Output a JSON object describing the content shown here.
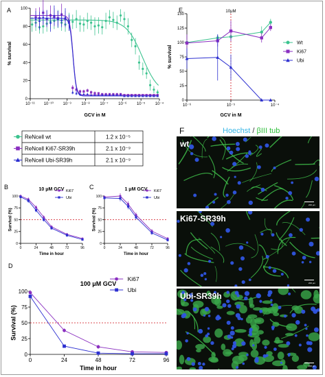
{
  "panel_labels": {
    "a": "A",
    "e": "E",
    "f": "F",
    "b": "B",
    "c": "C",
    "d": "D"
  },
  "colors": {
    "wt": "#3cc38f",
    "ki67": "#8a2fc0",
    "ubi": "#2c2fd0",
    "ref": "#d0101a"
  },
  "table": [
    {
      "label": "ReNcell wt",
      "value": "1.2 x 10⁻⁵",
      "marker": "circle",
      "color": "#3cc38f"
    },
    {
      "label": "ReNcell Ki67-SR39h",
      "value": "2.1 x 10⁻⁹",
      "marker": "square",
      "color": "#8a2fc0"
    },
    {
      "label": "ReNcell Ubi-SR39h",
      "value": "2.1 x 10⁻⁹",
      "marker": "triangle",
      "color": "#2c2fd0"
    }
  ],
  "microscopy": {
    "header": {
      "hoechst": "Hoechst",
      "sep": " / ",
      "tub": "βIII tub"
    },
    "panels": [
      {
        "label": "wt"
      },
      {
        "label": "Ki67-SR39h"
      },
      {
        "label": "Ubi-SR39h"
      }
    ],
    "scale_text": "200 μm"
  },
  "chart_data": [
    {
      "id": "A",
      "type": "scatter",
      "xscale": "log",
      "xlabel": "GCV in M",
      "ylabel": "% survival",
      "xlim": [
        1e-11,
        0.0001
      ],
      "ylim": [
        0,
        100
      ],
      "xticks": [
        "10⁻¹¹",
        "10⁻¹⁰",
        "10⁻⁹",
        "10⁻⁸",
        "10⁻⁷",
        "10⁻⁶",
        "10⁻⁵",
        "10⁻⁴"
      ],
      "yticks": [
        0,
        20,
        40,
        60,
        80,
        100
      ],
      "series": [
        {
          "key": "wt",
          "marker": "circle",
          "color": "#3cc38f",
          "x": [
            -10.9,
            -10.7,
            -10.5,
            -10.3,
            -10.1,
            -9.9,
            -9.7,
            -9.5,
            -9.3,
            -9.1,
            -8.9,
            -8.7,
            -8.5,
            -8.3,
            -8.1,
            -7.9,
            -7.7,
            -7.5,
            -7.3,
            -7.1,
            -6.9,
            -6.7,
            -6.5,
            -6.3,
            -6.1,
            -5.9,
            -5.7,
            -5.5,
            -5.3,
            -5.1,
            -4.9,
            -4.7,
            -4.5,
            -4.3,
            -4.1
          ],
          "y": [
            82,
            84,
            79,
            80,
            83,
            85,
            86,
            88,
            84,
            82,
            86,
            85,
            88,
            83,
            82,
            86,
            84,
            80,
            81,
            79,
            86,
            90,
            87,
            84,
            92,
            88,
            80,
            65,
            58,
            40,
            33,
            28,
            15,
            10,
            7
          ],
          "err": [
            8,
            9,
            7,
            8,
            9,
            8,
            9,
            10,
            9,
            8,
            9,
            8,
            10,
            9,
            8,
            9,
            8,
            10,
            9,
            8,
            9,
            8,
            9,
            8,
            7,
            8,
            9,
            8,
            9,
            8,
            7,
            6,
            6,
            4,
            3
          ],
          "fit": {
            "top": 87,
            "bottom": 5,
            "logec50": -4.92,
            "hill": 1.0
          }
        },
        {
          "key": "ki67",
          "marker": "square",
          "color": "#8a2fc0",
          "x": [
            -10.7,
            -10.5,
            -10.3,
            -10.1,
            -9.9,
            -9.7,
            -9.5,
            -9.3,
            -9.1,
            -8.9,
            -8.7,
            -8.5,
            -8.3,
            -8.1,
            -7.9,
            -7.7,
            -7.5,
            -7.3,
            -7.1,
            -6.9,
            -6.7,
            -6.5,
            -6.3,
            -6.1,
            -5.9,
            -5.7,
            -5.5,
            -5.3,
            -5.1,
            -4.9,
            -4.7,
            -4.5,
            -4.3,
            -4.1
          ],
          "y": [
            90,
            89,
            95,
            88,
            92,
            90,
            89,
            93,
            88,
            85,
            12,
            10,
            8,
            8,
            9,
            7,
            6,
            6,
            5,
            5,
            5,
            5,
            5,
            5,
            4,
            4,
            4,
            4,
            4,
            4,
            4,
            4,
            4,
            4
          ],
          "err": [
            10,
            12,
            14,
            9,
            11,
            10,
            8,
            12,
            9,
            7,
            3,
            3,
            2,
            2,
            2,
            2,
            2,
            1,
            1,
            1,
            1,
            1,
            1,
            1,
            1,
            1,
            1,
            1,
            1,
            1,
            1,
            1,
            1,
            1
          ],
          "fit": {
            "top": 92,
            "bottom": 4,
            "logec50": -8.68,
            "hill": 5.0
          }
        },
        {
          "key": "ubi",
          "marker": "triangle",
          "color": "#2c2fd0",
          "x": [
            -10.7,
            -10.5,
            -10.3,
            -10.1,
            -9.9,
            -9.7,
            -9.5,
            -9.3,
            -9.1,
            -8.9,
            -8.7,
            -8.5,
            -8.3,
            -8.1,
            -7.9,
            -7.7,
            -7.5,
            -7.3,
            -7.1,
            -6.9,
            -6.7,
            -6.5,
            -6.3,
            -6.1,
            -5.9,
            -5.7,
            -5.5,
            -5.3,
            -5.1,
            -4.9,
            -4.7,
            -4.5,
            -4.3,
            -4.1
          ],
          "y": [
            88,
            86,
            90,
            89,
            84,
            92,
            88,
            87,
            90,
            84,
            7,
            6,
            5,
            5,
            5,
            4,
            4,
            4,
            4,
            4,
            4,
            4,
            4,
            4,
            3,
            3,
            3,
            3,
            3,
            3,
            3,
            3,
            3,
            3
          ],
          "err": [
            9,
            10,
            8,
            9,
            10,
            11,
            9,
            8,
            10,
            9,
            2,
            2,
            2,
            1,
            1,
            1,
            1,
            1,
            1,
            1,
            1,
            1,
            1,
            1,
            1,
            1,
            1,
            1,
            1,
            1,
            1,
            1,
            1,
            1
          ],
          "fit": {
            "top": 89,
            "bottom": 3,
            "logec50": -8.68,
            "hill": 5.0
          }
        }
      ]
    },
    {
      "id": "E",
      "type": "line",
      "xscale": "log",
      "xlabel": "GCV in M",
      "ylabel": "% survival",
      "xlim": [
        1e-06,
        0.0001
      ],
      "ylim": [
        0,
        150
      ],
      "xticks": [
        "10⁻⁶",
        "10⁻⁵",
        "10⁻⁴"
      ],
      "yticks": [
        0,
        25,
        50,
        75,
        100,
        125,
        150
      ],
      "annotation": {
        "text": "10μM",
        "x": 1e-05
      },
      "legend_position": "right",
      "series": [
        {
          "name": "Wt",
          "marker": "circle",
          "color": "#3cc38f",
          "x": [
            1e-06,
            5e-06,
            1e-05,
            5e-05,
            8e-05
          ],
          "y": [
            100,
            108,
            110,
            118,
            135
          ],
          "err": [
            5,
            6,
            7,
            10,
            6
          ]
        },
        {
          "name": "Ki67",
          "marker": "square",
          "color": "#8a2fc0",
          "x": [
            1e-06,
            5e-06,
            1e-05,
            5e-05,
            8e-05
          ],
          "y": [
            99,
            103,
            120,
            108,
            126
          ],
          "err": [
            15,
            10,
            18,
            8,
            6
          ]
        },
        {
          "name": "Ubi",
          "marker": "triangle",
          "color": "#2c2fd0",
          "x": [
            1e-06,
            5e-06,
            1e-05,
            5e-05,
            8e-05
          ],
          "y": [
            72,
            74,
            57,
            0,
            0
          ],
          "err": [
            18,
            40,
            22,
            0,
            0
          ]
        }
      ]
    },
    {
      "id": "B",
      "type": "line",
      "title": "10 μM GCV",
      "xlabel": "Time in hour",
      "ylabel": "Survival (%)",
      "xlim": [
        0,
        96
      ],
      "ylim": [
        0,
        100
      ],
      "xticks": [
        0,
        24,
        48,
        72,
        96
      ],
      "yticks": [
        0,
        25,
        50,
        75,
        100
      ],
      "refline": 50,
      "legend_position": "top-right",
      "series": [
        {
          "name": "Ki67",
          "marker": "circle",
          "color": "#8a2fc0",
          "x": [
            0,
            12,
            24,
            36,
            48,
            72,
            96
          ],
          "y": [
            100,
            93,
            76,
            55,
            35,
            19,
            10
          ],
          "err": [
            3,
            4,
            4,
            4,
            3,
            3,
            2
          ]
        },
        {
          "name": "Ubi",
          "marker": "square",
          "color": "#2c2fd0",
          "x": [
            0,
            12,
            24,
            36,
            48,
            72,
            96
          ],
          "y": [
            98,
            90,
            70,
            50,
            32,
            17,
            8
          ],
          "err": [
            3,
            4,
            4,
            4,
            3,
            3,
            2
          ]
        }
      ]
    },
    {
      "id": "C",
      "type": "line",
      "title": "1 μM GCV",
      "xlabel": "Time in hour",
      "ylabel": "Survival (%)",
      "xlim": [
        0,
        96
      ],
      "ylim": [
        0,
        100
      ],
      "xticks": [
        0,
        24,
        48,
        72,
        96
      ],
      "yticks": [
        0,
        25,
        50,
        75,
        100
      ],
      "refline": 50,
      "legend_position": "top-right",
      "series": [
        {
          "name": "Ki67",
          "marker": "circle",
          "color": "#8a2fc0",
          "x": [
            0,
            24,
            36,
            48,
            72,
            96
          ],
          "y": [
            98,
            100,
            83,
            60,
            26,
            10
          ],
          "err": [
            3,
            6,
            6,
            5,
            4,
            3
          ]
        },
        {
          "name": "Ubi",
          "marker": "square",
          "color": "#2c2fd0",
          "x": [
            0,
            24,
            36,
            48,
            72,
            96
          ],
          "y": [
            96,
            95,
            78,
            55,
            22,
            7
          ],
          "err": [
            3,
            6,
            6,
            5,
            4,
            3
          ]
        }
      ]
    },
    {
      "id": "D",
      "type": "line",
      "title": "100 μM GCV",
      "xlabel": "Time in hour",
      "ylabel": "Survival (%)",
      "xlim": [
        0,
        96
      ],
      "ylim": [
        0,
        100
      ],
      "xticks": [
        0,
        24,
        48,
        72,
        96
      ],
      "yticks": [
        0,
        25,
        50,
        75,
        100
      ],
      "refline": 50,
      "legend_position": "top-right",
      "series": [
        {
          "name": "Ki67",
          "marker": "circle",
          "color": "#8a2fc0",
          "x": [
            0,
            24,
            48,
            72,
            96
          ],
          "y": [
            98,
            38,
            12,
            4,
            3
          ],
          "err": [
            4,
            3,
            3,
            2,
            1
          ]
        },
        {
          "name": "Ubi",
          "marker": "square",
          "color": "#2c2fd0",
          "x": [
            0,
            24,
            48,
            72,
            96
          ],
          "y": [
            92,
            13,
            2,
            1,
            1
          ],
          "err": [
            4,
            2,
            1,
            1,
            1
          ]
        }
      ]
    }
  ]
}
